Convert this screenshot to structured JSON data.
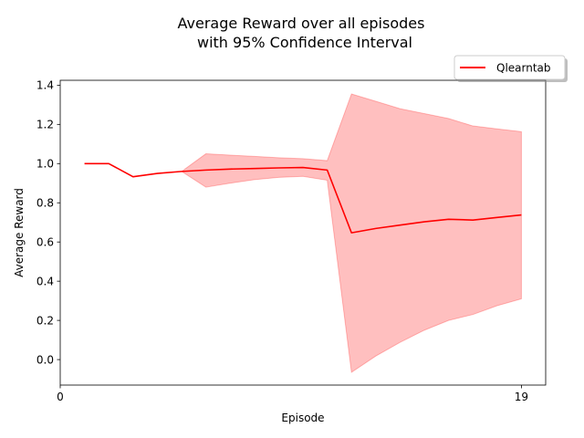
{
  "chart_data": {
    "type": "line",
    "title_lines": [
      "Average Reward over all episodes",
      "with 95% Confidence Interval"
    ],
    "xlabel": "Episode",
    "ylabel": "Average Reward",
    "xlim": [
      0,
      20
    ],
    "ylim": [
      -0.13,
      1.425
    ],
    "x_ticks": [
      0,
      19
    ],
    "y_ticks": [
      0.0,
      0.2,
      0.4,
      0.6,
      0.8,
      1.0,
      1.2,
      1.4
    ],
    "grid": false,
    "legend_position": "top-right",
    "colors": {
      "line": "#ff0000",
      "band": "#ff0000"
    },
    "series": [
      {
        "name": "Qlearntab",
        "x": [
          1,
          2,
          3,
          4,
          5,
          6,
          7,
          8,
          9,
          10,
          11,
          12,
          13,
          14,
          15,
          16,
          17,
          18,
          19
        ],
        "values": [
          1.0,
          1.0,
          0.933,
          0.95,
          0.96,
          0.967,
          0.972,
          0.975,
          0.978,
          0.98,
          0.967,
          0.647,
          0.669,
          0.686,
          0.703,
          0.716,
          0.712,
          0.725,
          0.738
        ],
        "ci_lower": [
          1.0,
          1.0,
          0.933,
          0.95,
          0.96,
          0.88,
          0.9,
          0.918,
          0.93,
          0.935,
          0.915,
          -0.065,
          0.018,
          0.088,
          0.15,
          0.2,
          0.23,
          0.275,
          0.31
        ],
        "ci_upper": [
          1.0,
          1.0,
          0.933,
          0.95,
          0.96,
          1.05,
          1.043,
          1.037,
          1.03,
          1.025,
          1.015,
          1.355,
          1.318,
          1.28,
          1.255,
          1.23,
          1.192,
          1.177,
          1.163
        ]
      }
    ]
  }
}
